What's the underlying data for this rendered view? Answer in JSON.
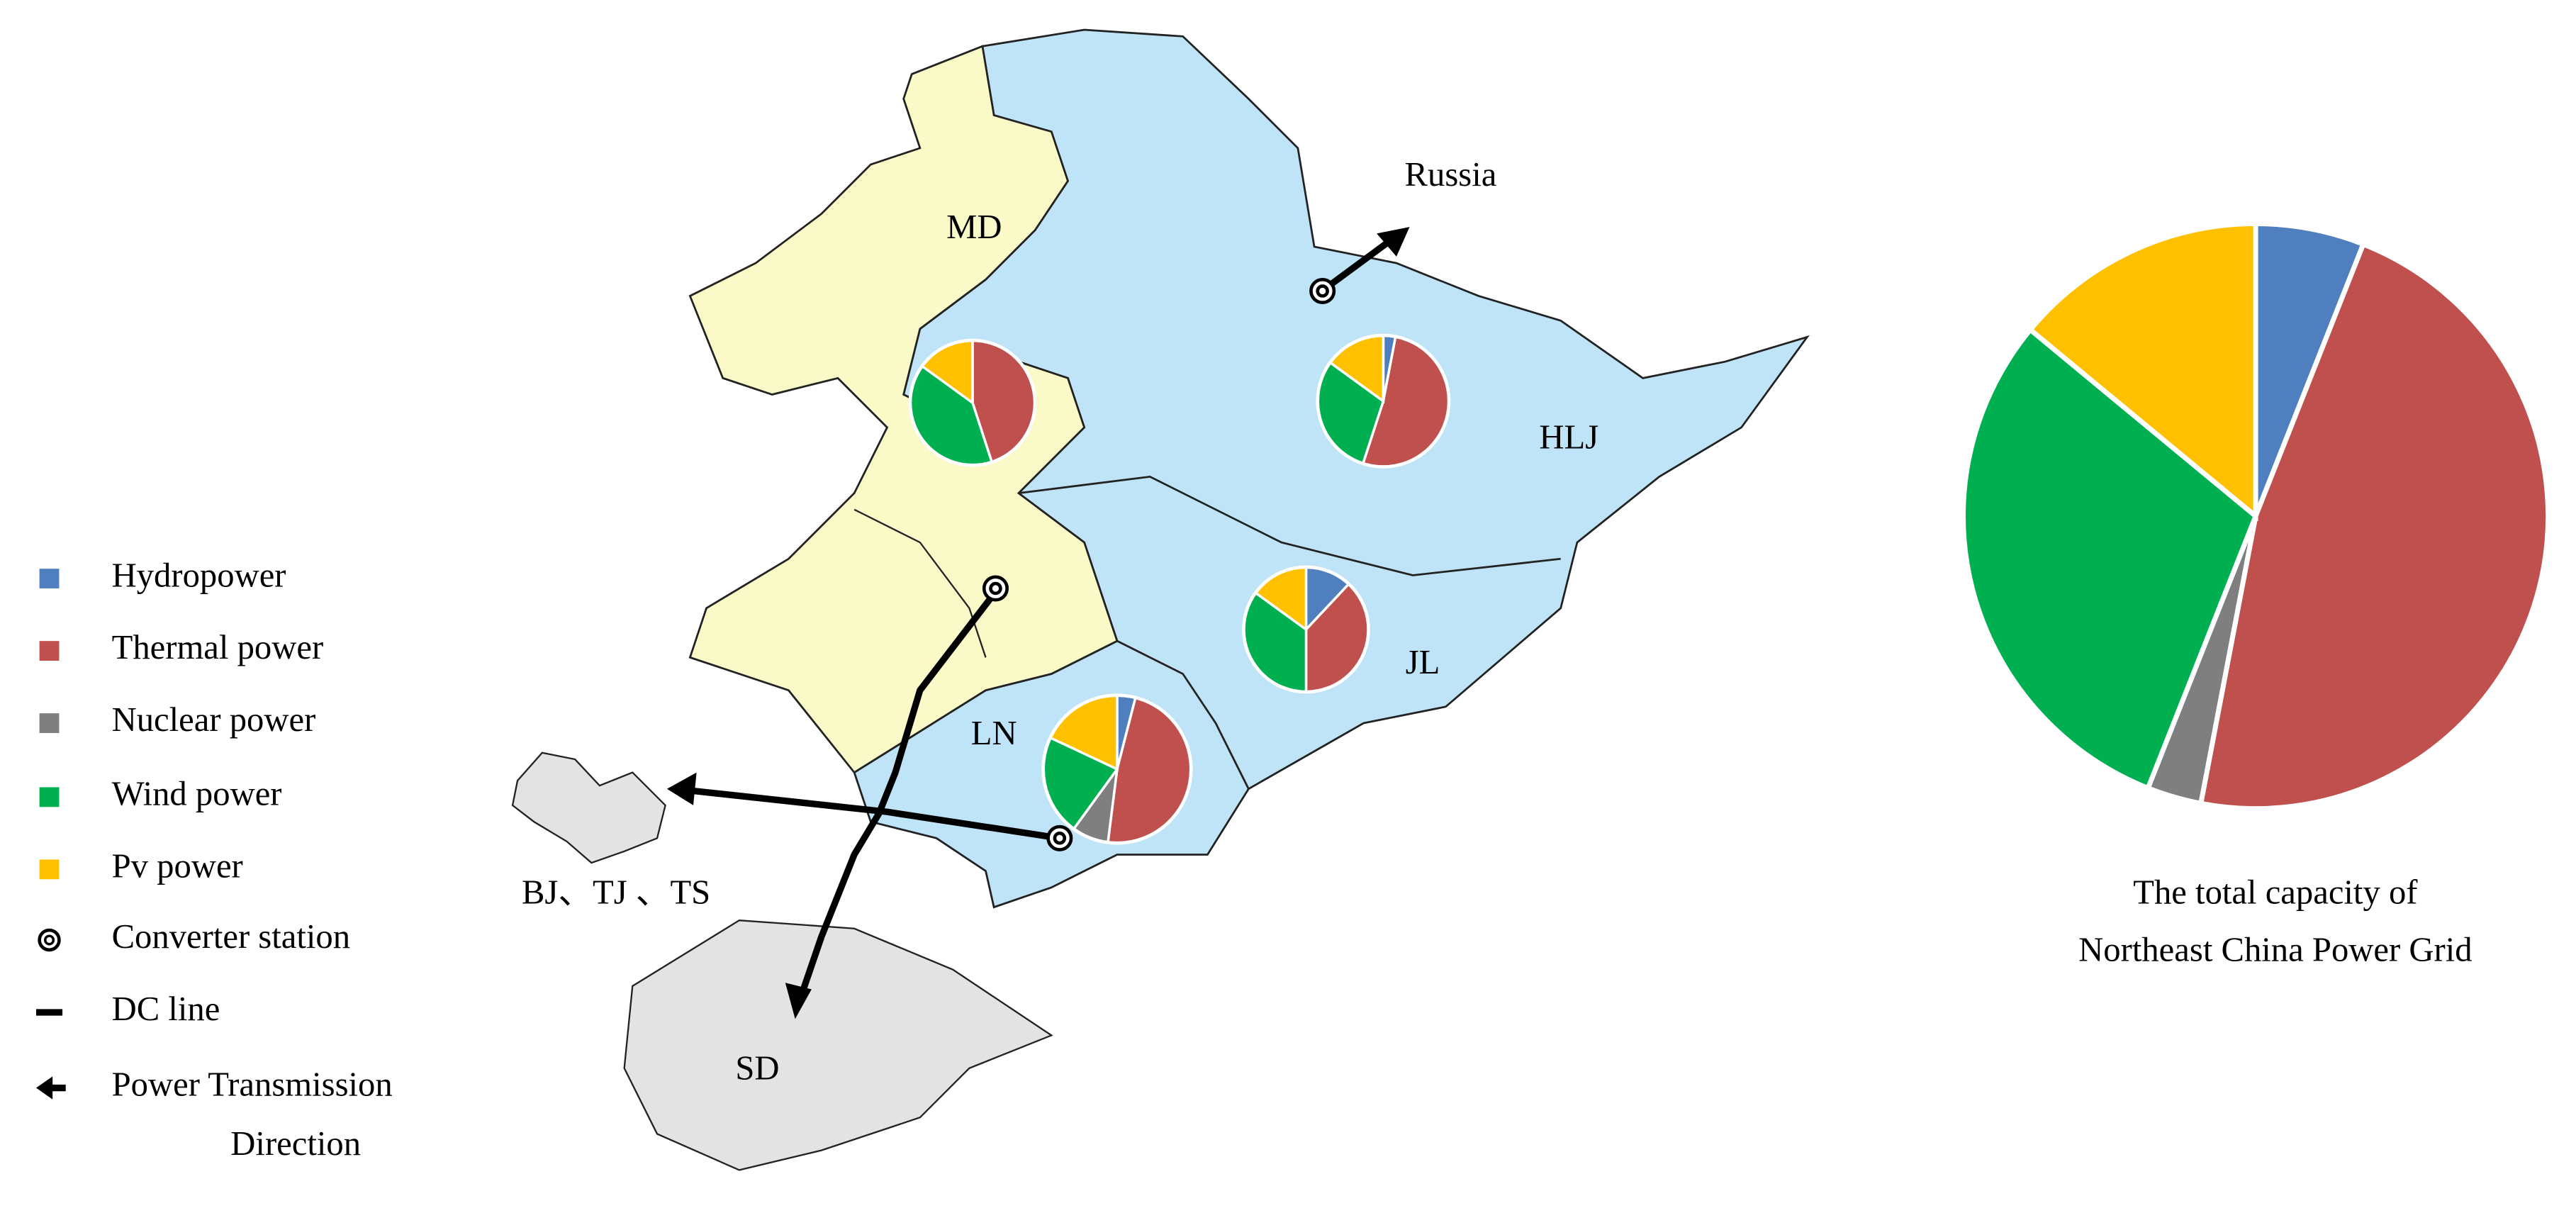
{
  "colors": [
    "#4f7fbf",
    "#c0504d",
    "#7f7f7f",
    "#00b050",
    "#ffc000"
  ],
  "legend": [
    "Hydropower",
    "Thermal  power",
    "Nuclear  power",
    "Wind  power",
    "Pv  power",
    "Converter  station",
    "DC line",
    [
      "Power  Transmission",
      "Direction"
    ]
  ],
  "regions": [
    {
      "label": "MD",
      "values": [
        0,
        45,
        0,
        40,
        15
      ]
    },
    {
      "label": "HLJ",
      "values": [
        3,
        52,
        0,
        30,
        15
      ]
    },
    {
      "label": "JL",
      "values": [
        12,
        38,
        0,
        35,
        15
      ]
    },
    {
      "label": "LN",
      "values": [
        4,
        48,
        8,
        22,
        18
      ]
    }
  ],
  "places": [
    "Russia",
    "BJ、TJ 、TS",
    "SD"
  ],
  "total": {
    "caption": [
      "The  total  capacity  of",
      "Northeast  China  Power Grid"
    ],
    "values": [
      6,
      47,
      3,
      30,
      14
    ]
  }
}
